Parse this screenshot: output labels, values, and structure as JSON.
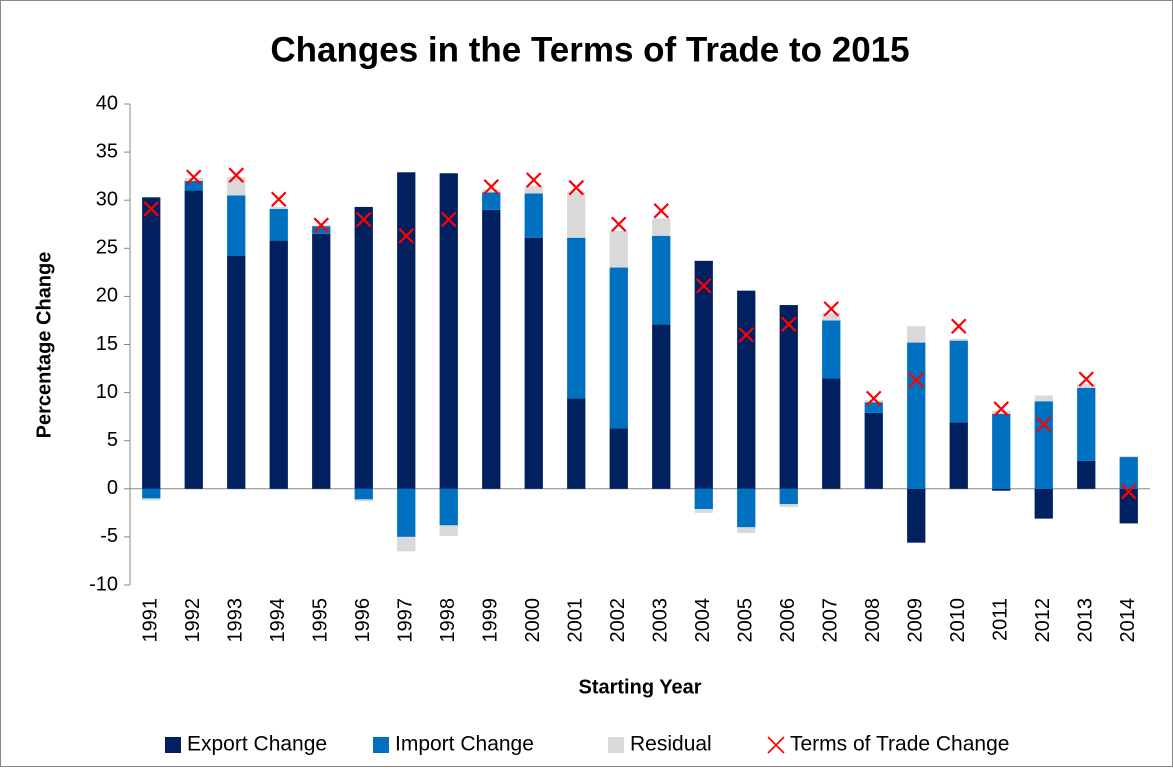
{
  "chart_data": {
    "type": "bar",
    "stacked": true,
    "title": "Changes in the Terms of Trade to 2015",
    "x_label": "Starting Year",
    "y_label": "Percentage Change",
    "categories": [
      "1991",
      "1992",
      "1993",
      "1994",
      "1995",
      "1996",
      "1997",
      "1998",
      "1999",
      "2000",
      "2001",
      "2002",
      "2003",
      "2004",
      "2005",
      "2006",
      "2007",
      "2008",
      "2009",
      "2010",
      "2011",
      "2012",
      "2013",
      "2014"
    ],
    "series": [
      {
        "name": "Export Change",
        "type": "bar",
        "color": "#002060",
        "values": [
          30.3,
          31.0,
          24.2,
          25.8,
          26.5,
          29.3,
          32.9,
          32.8,
          29.0,
          26.1,
          9.4,
          6.3,
          17.1,
          23.7,
          20.6,
          19.1,
          11.5,
          7.9,
          -5.6,
          6.9,
          -0.2,
          -3.1,
          2.9,
          -3.6
        ]
      },
      {
        "name": "Import Change",
        "type": "bar",
        "color": "#0070c0",
        "values": [
          -1.0,
          1.0,
          6.3,
          3.3,
          0.8,
          -1.1,
          -5.0,
          -3.8,
          1.8,
          4.6,
          16.7,
          16.7,
          9.2,
          -2.1,
          -4.0,
          -1.6,
          6.0,
          1.1,
          15.2,
          8.5,
          7.8,
          9.1,
          7.6,
          3.3
        ]
      },
      {
        "name": "Residual",
        "type": "bar",
        "color": "#d9d9d9",
        "values": [
          -0.2,
          0.3,
          1.9,
          0.2,
          0.1,
          -0.2,
          -1.5,
          -1.1,
          0.3,
          0.8,
          4.8,
          3.8,
          1.8,
          -0.4,
          -0.6,
          -0.3,
          0.8,
          0.2,
          1.7,
          0.2,
          0.3,
          0.6,
          0.4,
          0.1
        ]
      },
      {
        "name": "Terms of Trade Change",
        "type": "scatter",
        "color": "#ff0000",
        "values": [
          29.1,
          32.4,
          32.6,
          30.1,
          27.4,
          28.0,
          26.3,
          28.0,
          31.4,
          32.1,
          31.3,
          27.5,
          28.9,
          21.1,
          16.0,
          17.1,
          18.7,
          9.4,
          11.3,
          16.9,
          8.3,
          6.7,
          11.4,
          -0.3
        ]
      }
    ],
    "ylim": [
      -10,
      40
    ],
    "yticks": [
      -10,
      -5,
      0,
      5,
      10,
      15,
      20,
      25,
      30,
      35,
      40
    ],
    "grid": false,
    "legend": "bottom"
  }
}
